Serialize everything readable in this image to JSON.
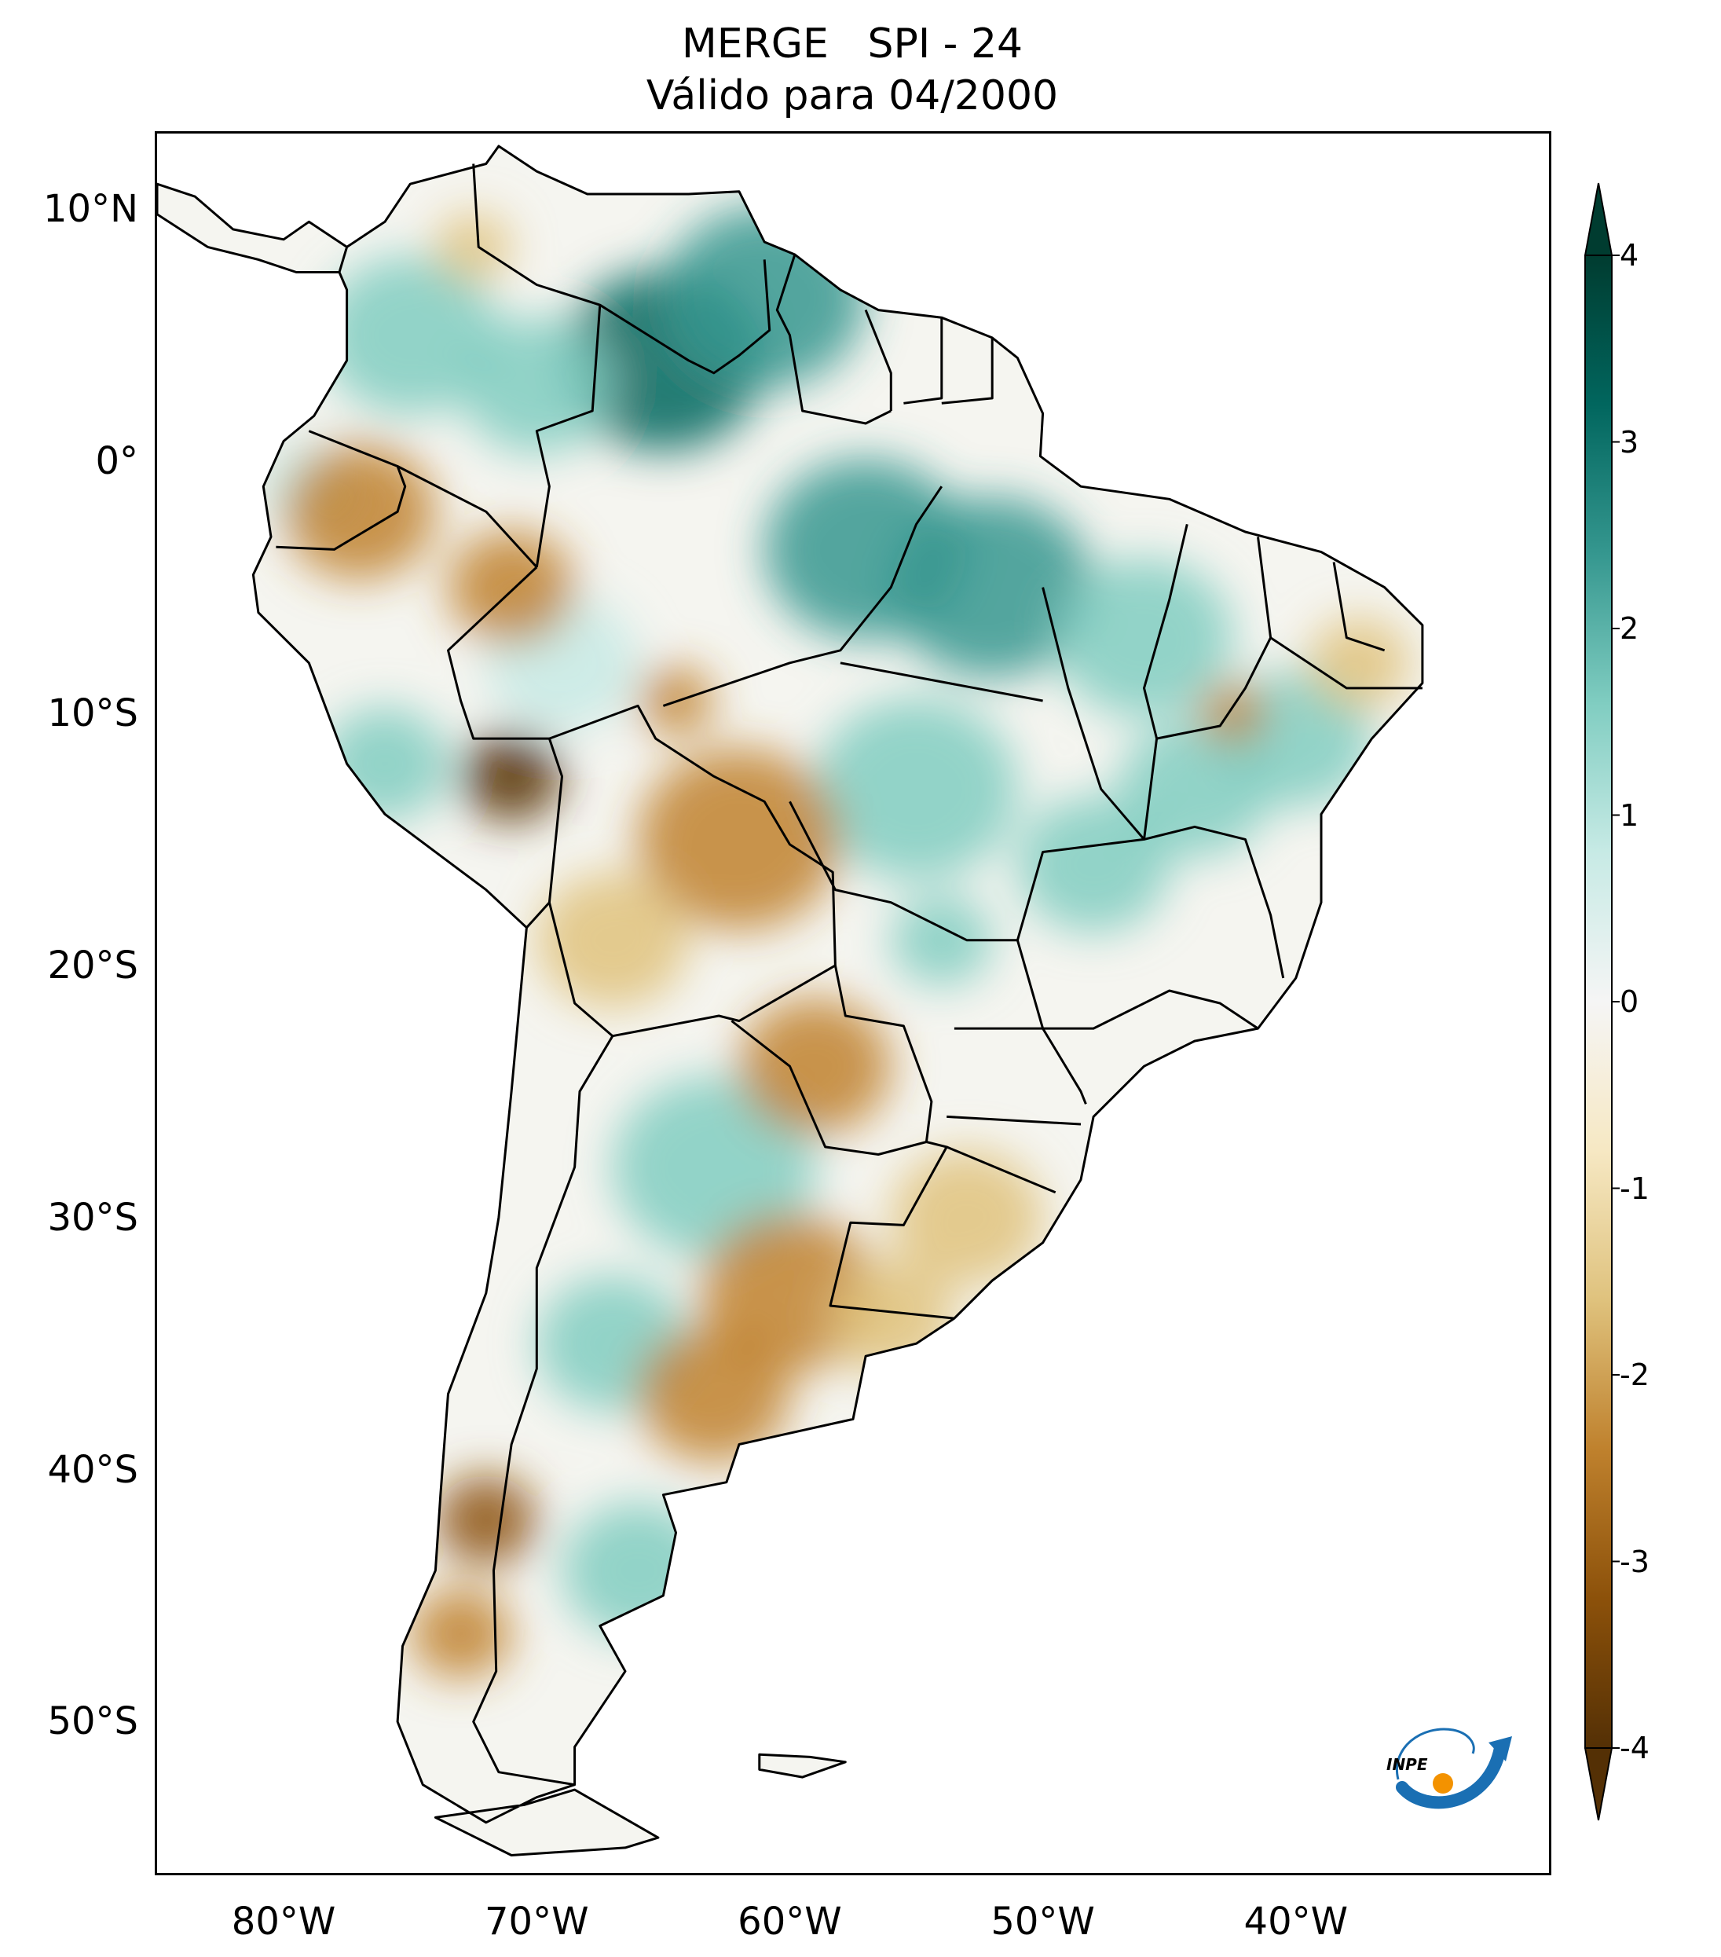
{
  "title": {
    "line1": "MERGE   SPI - 24",
    "line2": "Válido para 04/2000"
  },
  "map": {
    "region": "South America",
    "extent_lon": [
      -85,
      -30
    ],
    "extent_lat": [
      -56,
      13
    ],
    "lat_ticks": [
      {
        "value": 10,
        "label": "10°N"
      },
      {
        "value": 0,
        "label": "0°"
      },
      {
        "value": -10,
        "label": "10°S"
      },
      {
        "value": -20,
        "label": "20°S"
      },
      {
        "value": -30,
        "label": "30°S"
      },
      {
        "value": -40,
        "label": "40°S"
      },
      {
        "value": -50,
        "label": "50°S"
      }
    ],
    "lon_ticks": [
      {
        "value": -80,
        "label": "80°W"
      },
      {
        "value": -70,
        "label": "70°W"
      },
      {
        "value": -60,
        "label": "60°W"
      },
      {
        "value": -50,
        "label": "50°W"
      },
      {
        "value": -40,
        "label": "40°W"
      }
    ],
    "colors": {
      "ocean": "#ffffff",
      "boundary": "#000000",
      "wet": "#7fcdbb",
      "dry": "#c9a060",
      "neutral": "#f5f5f0"
    },
    "anomalies": [
      {
        "lon": -65,
        "lat": 4,
        "spi": 3.0,
        "r": 4
      },
      {
        "lon": -61,
        "lat": 6.5,
        "spi": 2.2,
        "r": 4
      },
      {
        "lon": -57,
        "lat": -3.5,
        "spi": 2.3,
        "r": 4
      },
      {
        "lon": -52,
        "lat": -5,
        "spi": 2.4,
        "r": 4
      },
      {
        "lon": -46,
        "lat": -7,
        "spi": 1.8,
        "r": 3.5
      },
      {
        "lon": -44,
        "lat": -13,
        "spi": 1.8,
        "r": 3
      },
      {
        "lon": -40,
        "lat": -11,
        "spi": 1.6,
        "r": 3
      },
      {
        "lon": -55,
        "lat": -13,
        "spi": 1.5,
        "r": 4
      },
      {
        "lon": -48,
        "lat": -16,
        "spi": 1.5,
        "r": 3
      },
      {
        "lon": -75,
        "lat": 5,
        "spi": 1.4,
        "r": 3.5
      },
      {
        "lon": -70,
        "lat": 3,
        "spi": 1.5,
        "r": 3
      },
      {
        "lon": -69,
        "lat": -8,
        "spi": 1.2,
        "r": 3
      },
      {
        "lon": -76,
        "lat": -12,
        "spi": 1.3,
        "r": 2.5
      },
      {
        "lon": -63,
        "lat": -28,
        "spi": 1.6,
        "r": 4
      },
      {
        "lon": -67,
        "lat": -35,
        "spi": 1.3,
        "r": 3
      },
      {
        "lon": -66,
        "lat": -44,
        "spi": 1.4,
        "r": 3
      },
      {
        "lon": -79,
        "lat": -1,
        "spi": 1.2,
        "r": 2
      },
      {
        "lon": -54,
        "lat": -19,
        "spi": 1.6,
        "r": 2
      },
      {
        "lon": -71,
        "lat": -12.5,
        "spi": -3.2,
        "r": 2
      },
      {
        "lon": -62,
        "lat": -15,
        "spi": -1.8,
        "r": 4
      },
      {
        "lon": -67,
        "lat": -19,
        "spi": -1.2,
        "r": 3
      },
      {
        "lon": -59,
        "lat": -24,
        "spi": -1.8,
        "r": 3
      },
      {
        "lon": -60,
        "lat": -33,
        "spi": -1.5,
        "r": 3.5
      },
      {
        "lon": -63,
        "lat": -37,
        "spi": -1.8,
        "r": 3
      },
      {
        "lon": -72,
        "lat": -42,
        "spi": -2.4,
        "r": 2
      },
      {
        "lon": -73,
        "lat": -46.5,
        "spi": -1.8,
        "r": 2
      },
      {
        "lon": -77,
        "lat": -2,
        "spi": -1.4,
        "r": 3
      },
      {
        "lon": -71,
        "lat": -5,
        "spi": -1.5,
        "r": 2.5
      },
      {
        "lon": -64.5,
        "lat": -9.5,
        "spi": -1.6,
        "r": 1.5
      },
      {
        "lon": -37.5,
        "lat": -8,
        "spi": -1.3,
        "r": 2
      },
      {
        "lon": -42.5,
        "lat": -10,
        "spi": -1.5,
        "r": 1.3
      },
      {
        "lon": -53,
        "lat": -30,
        "spi": -0.8,
        "r": 3
      },
      {
        "lon": -56,
        "lat": -34,
        "spi": -0.7,
        "r": 2.5
      },
      {
        "lon": -72.5,
        "lat": 8.5,
        "spi": -1.0,
        "r": 1.5
      }
    ]
  },
  "colorbar": {
    "min": -4,
    "max": 4,
    "extend": "both",
    "ticks": [
      {
        "value": 4,
        "label": "4"
      },
      {
        "value": 3,
        "label": "3"
      },
      {
        "value": 2,
        "label": "2"
      },
      {
        "value": 1,
        "label": "1"
      },
      {
        "value": 0,
        "label": "0"
      },
      {
        "value": -1,
        "label": "-1"
      },
      {
        "value": -2,
        "label": "-2"
      },
      {
        "value": -3,
        "label": "-3"
      },
      {
        "value": -4,
        "label": "-4"
      }
    ],
    "colors": {
      "dry_extreme": "#543005",
      "dry_strong": "#8c510a",
      "dry": "#bf812d",
      "dry_light": "#dfc27d",
      "dry_faint": "#f6e8c3",
      "neutral": "#f5f5f5",
      "wet_faint": "#c7eae5",
      "wet_light": "#80cdc1",
      "wet": "#35978f",
      "wet_strong": "#01665e",
      "wet_extreme": "#003c30"
    }
  },
  "logo": {
    "text": "INPE",
    "colors": {
      "arrow": "#1a6fb3",
      "dot": "#f39200"
    }
  }
}
